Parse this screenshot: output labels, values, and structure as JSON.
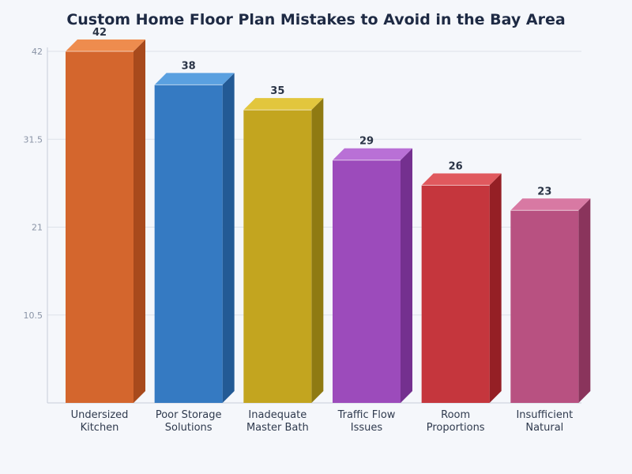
{
  "chart_data": {
    "type": "bar",
    "title": "Custom Home Floor Plan Mistakes to Avoid in the Bay Area",
    "xlabel": "",
    "ylabel": "",
    "categories": [
      [
        "Undersized",
        "Kitchen"
      ],
      [
        "Poor Storage",
        "Solutions"
      ],
      [
        "Inadequate",
        "Master Bath"
      ],
      [
        "Traffic Flow",
        "Issues"
      ],
      [
        "Room",
        "Proportions"
      ],
      [
        "Insufficient",
        "Natural"
      ]
    ],
    "values": [
      42,
      38,
      35,
      29,
      26,
      23
    ],
    "value_labels": [
      "42",
      "38",
      "35",
      "29",
      "26",
      "23"
    ],
    "ylim": [
      0,
      42
    ],
    "yticks": [
      10.5,
      21,
      31.5,
      42
    ],
    "ytick_labels": [
      "10.5",
      "21",
      "31.5",
      "42"
    ],
    "grid": true,
    "colors": [
      {
        "front": "#d4662d",
        "top": "#ee8c4e",
        "side": "#a84a1c"
      },
      {
        "front": "#357ac2",
        "top": "#5aa0e0",
        "side": "#235a95"
      },
      {
        "front": "#c3a51f",
        "top": "#e2c63d",
        "side": "#8f7a12"
      },
      {
        "front": "#9c4bbb",
        "top": "#b970d6",
        "side": "#74308f"
      },
      {
        "front": "#c5363d",
        "top": "#e0595e",
        "side": "#951f25"
      },
      {
        "front": "#b85181",
        "top": "#d879a3",
        "side": "#8a345c"
      }
    ]
  }
}
